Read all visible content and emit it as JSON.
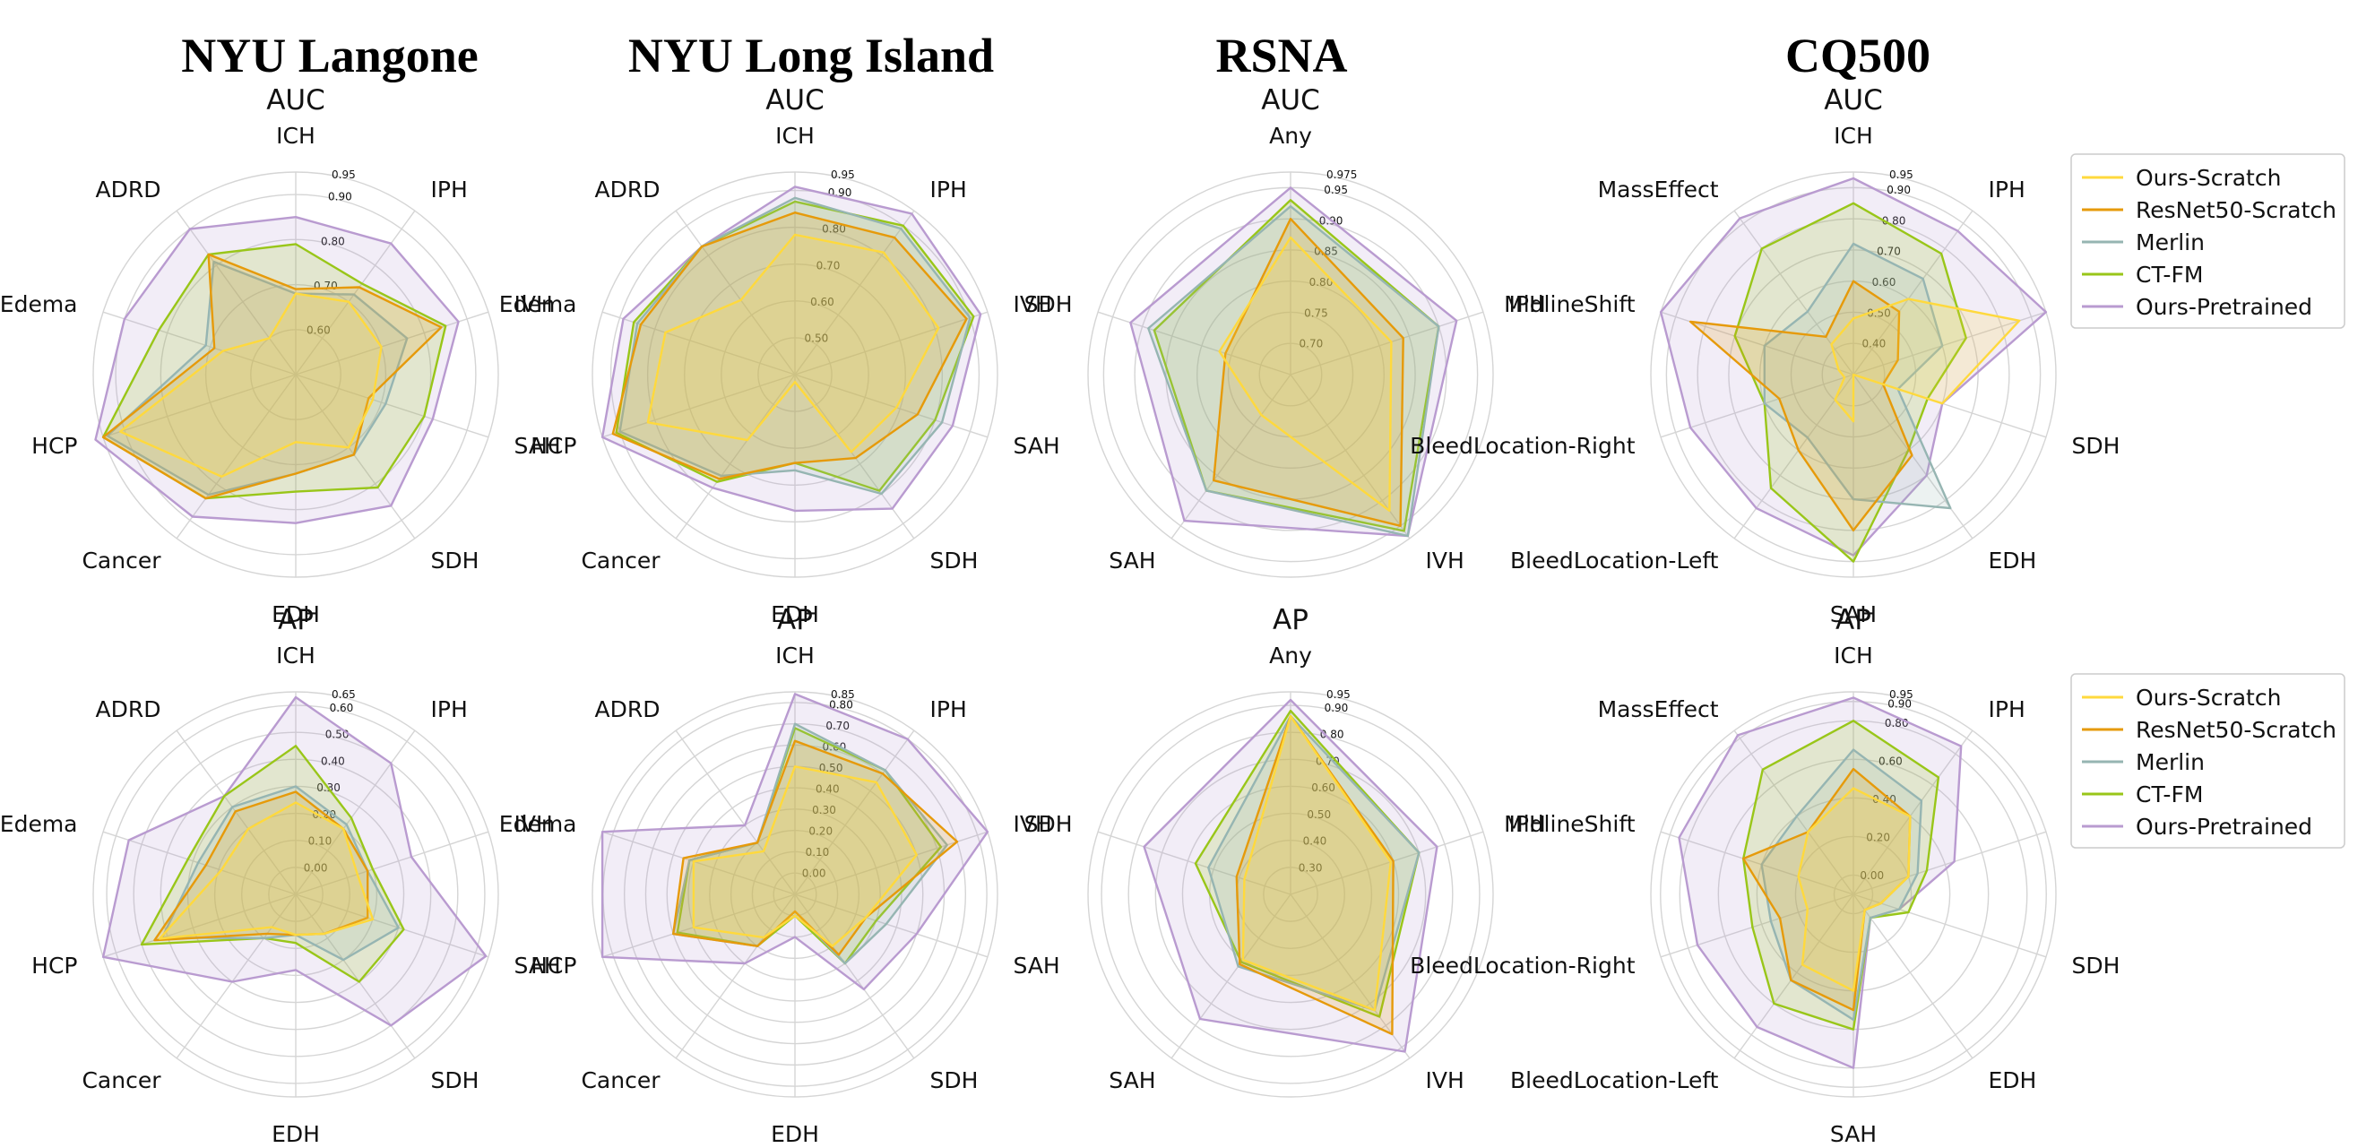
{
  "columns": [
    "NYU Langone",
    "NYU Long Island",
    "RSNA",
    "CQ500"
  ],
  "series_colors": {
    "Ours-Scratch": "#ffd93d",
    "ResNet50-Scratch": "#e69a0a",
    "Merlin": "#96b5b2",
    "CT-FM": "#99c619",
    "Ours-Pretrained": "#b99bd0"
  },
  "legends": [
    {
      "entries": [
        "Ours-Scratch",
        "ResNet50-Scratch",
        "Merlin",
        "CT-FM",
        "Ours-Pretrained"
      ]
    },
    {
      "entries": [
        "Ours-Scratch",
        "ResNet50-Scratch",
        "Merlin",
        "CT-FM",
        "Ours-Pretrained"
      ]
    }
  ],
  "chart_data": [
    {
      "type": "radar",
      "title": "AUC",
      "column": "NYU Langone",
      "axes": [
        "ICH",
        "IPH",
        "IVH",
        "SAH",
        "SDH",
        "EDH",
        "Cancer",
        "HCP",
        "Edema",
        "ADRD"
      ],
      "range": [
        0.5,
        0.95
      ],
      "ticks": [
        "0.60",
        "0.70",
        "0.80",
        "0.90",
        "0.95"
      ],
      "series": [
        {
          "name": "Ours-Scratch",
          "values": [
            0.68,
            0.7,
            0.7,
            0.68,
            0.7,
            0.65,
            0.78,
            0.91,
            0.67,
            0.6
          ]
        },
        {
          "name": "ResNet50-Scratch",
          "values": [
            0.69,
            0.74,
            0.84,
            0.67,
            0.72,
            0.72,
            0.84,
            0.95,
            0.69,
            0.83
          ]
        },
        {
          "name": "Merlin",
          "values": [
            0.68,
            0.72,
            0.76,
            0.71,
            0.72,
            0.72,
            0.83,
            0.94,
            0.71,
            0.81
          ]
        },
        {
          "name": "CT-FM",
          "values": [
            0.79,
            0.75,
            0.85,
            0.8,
            0.81,
            0.76,
            0.84,
            0.95,
            0.82,
            0.83
          ]
        },
        {
          "name": "Ours-Pretrained",
          "values": [
            0.85,
            0.86,
            0.88,
            0.82,
            0.86,
            0.83,
            0.89,
            0.98,
            0.9,
            0.9
          ]
        }
      ]
    },
    {
      "type": "radar",
      "title": "AUC",
      "column": "NYU Long Island",
      "axes": [
        "ICH",
        "IPH",
        "IVH",
        "SAH",
        "SDH",
        "EDH",
        "Cancer",
        "HCP",
        "Edema",
        "ADRD"
      ],
      "range": [
        0.4,
        0.95
      ],
      "ticks": [
        "0.50",
        "0.60",
        "0.70",
        "0.80",
        "0.90",
        "0.95"
      ],
      "series": [
        {
          "name": "Ours-Scratch",
          "values": [
            0.78,
            0.81,
            0.81,
            0.69,
            0.66,
            0.42,
            0.62,
            0.82,
            0.77,
            0.65
          ]
        },
        {
          "name": "ResNet50-Scratch",
          "values": [
            0.84,
            0.86,
            0.89,
            0.75,
            0.68,
            0.64,
            0.75,
            0.92,
            0.84,
            0.83
          ]
        },
        {
          "name": "Merlin",
          "values": [
            0.88,
            0.89,
            0.9,
            0.82,
            0.8,
            0.66,
            0.74,
            0.9,
            0.85,
            0.83
          ]
        },
        {
          "name": "CT-FM",
          "values": [
            0.87,
            0.9,
            0.91,
            0.8,
            0.79,
            0.64,
            0.76,
            0.91,
            0.86,
            0.83
          ]
        },
        {
          "name": "Ours-Pretrained",
          "values": [
            0.91,
            0.94,
            0.93,
            0.85,
            0.85,
            0.77,
            0.78,
            0.95,
            0.89,
            0.83
          ]
        }
      ]
    },
    {
      "type": "radar",
      "title": "AUC",
      "column": "RSNA",
      "axes": [
        "Any",
        "IPH",
        "IVH",
        "SAH",
        "SDH"
      ],
      "range": [
        0.65,
        0.975
      ],
      "ticks": [
        "0.70",
        "0.75",
        "0.80",
        "0.85",
        "0.90",
        "0.95",
        "0.975"
      ],
      "series": [
        {
          "name": "Ours-Scratch",
          "values": [
            0.87,
            0.82,
            0.92,
            0.73,
            0.77
          ]
        },
        {
          "name": "ResNet50-Scratch",
          "values": [
            0.9,
            0.84,
            0.95,
            0.86,
            0.76
          ]
        },
        {
          "name": "Merlin",
          "values": [
            0.92,
            0.9,
            0.97,
            0.88,
            0.89
          ]
        },
        {
          "name": "CT-FM",
          "values": [
            0.93,
            0.9,
            0.96,
            0.88,
            0.88
          ]
        },
        {
          "name": "Ours-Pretrained",
          "values": [
            0.95,
            0.93,
            0.97,
            0.94,
            0.92
          ]
        }
      ]
    },
    {
      "type": "radar",
      "title": "AUC",
      "column": "CQ500",
      "axes": [
        "ICH",
        "IPH",
        "IVH",
        "SDH",
        "EDH",
        "SAH",
        "BleedLocation-Left",
        "BleedLocation-Right",
        "MidlineShift",
        "MassEffect"
      ],
      "range": [
        0.3,
        0.95
      ],
      "ticks": [
        "0.40",
        "0.50",
        "0.60",
        "0.70",
        "0.80",
        "0.90",
        "0.95"
      ],
      "series": [
        {
          "name": "Ours-Scratch",
          "values": [
            0.48,
            0.6,
            0.86,
            0.6,
            0.3,
            0.45,
            0.4,
            0.33,
            0.35,
            0.42
          ]
        },
        {
          "name": "ResNet50-Scratch",
          "values": [
            0.6,
            0.55,
            0.45,
            0.4,
            0.62,
            0.8,
            0.6,
            0.55,
            0.85,
            0.45
          ]
        },
        {
          "name": "Merlin",
          "values": [
            0.72,
            0.68,
            0.6,
            0.45,
            0.83,
            0.7,
            0.55,
            0.6,
            0.6,
            0.55
          ]
        },
        {
          "name": "CT-FM",
          "values": [
            0.85,
            0.78,
            0.68,
            0.55,
            0.6,
            0.9,
            0.75,
            0.6,
            0.7,
            0.8
          ]
        },
        {
          "name": "Ours-Pretrained",
          "values": [
            0.93,
            0.87,
            0.95,
            0.6,
            0.7,
            0.88,
            0.83,
            0.85,
            0.95,
            0.92
          ]
        }
      ]
    },
    {
      "type": "radar",
      "title": "AP",
      "column": "NYU Langone",
      "axes": [
        "ICH",
        "IPH",
        "IVH",
        "SAH",
        "SDH",
        "EDH",
        "Cancer",
        "HCP",
        "Edema",
        "ADRD"
      ],
      "range": [
        -0.1,
        0.65
      ],
      "ticks": [
        "0.00",
        "0.10",
        "0.20",
        "0.30",
        "0.40",
        "0.50",
        "0.60",
        "0.65"
      ],
      "series": [
        {
          "name": "Ours-Scratch",
          "values": [
            0.24,
            0.2,
            0.14,
            0.2,
            0.08,
            0.05,
            0.05,
            0.43,
            0.19,
            0.2
          ]
        },
        {
          "name": "ResNet50-Scratch",
          "values": [
            0.28,
            0.2,
            0.18,
            0.18,
            0.08,
            0.05,
            0.08,
            0.45,
            0.25,
            0.28
          ]
        },
        {
          "name": "Merlin",
          "values": [
            0.3,
            0.22,
            0.18,
            0.3,
            0.2,
            0.05,
            0.1,
            0.42,
            0.28,
            0.3
          ]
        },
        {
          "name": "CT-FM",
          "values": [
            0.45,
            0.25,
            0.2,
            0.32,
            0.3,
            0.08,
            0.1,
            0.5,
            0.32,
            0.35
          ]
        },
        {
          "name": "Ours-Pretrained",
          "values": [
            0.63,
            0.5,
            0.35,
            0.64,
            0.5,
            0.18,
            0.3,
            0.65,
            0.55,
            0.35
          ]
        }
      ]
    },
    {
      "type": "radar",
      "title": "AP",
      "column": "NYU Long Island",
      "axes": [
        "ICH",
        "IPH",
        "IVH",
        "SAH",
        "SDH",
        "EDH",
        "Cancer",
        "HCP",
        "Edema",
        "ADRD"
      ],
      "range": [
        -0.1,
        0.85
      ],
      "ticks": [
        "0.00",
        "0.10",
        "0.20",
        "0.30",
        "0.40",
        "0.50",
        "0.60",
        "0.70",
        "0.80",
        "0.85"
      ],
      "series": [
        {
          "name": "Ours-Scratch",
          "values": [
            0.5,
            0.55,
            0.5,
            0.25,
            0.2,
            0.0,
            0.15,
            0.4,
            0.4,
            0.15
          ]
        },
        {
          "name": "ResNet50-Scratch",
          "values": [
            0.62,
            0.6,
            0.7,
            0.25,
            0.25,
            -0.02,
            0.2,
            0.5,
            0.45,
            0.2
          ]
        },
        {
          "name": "Merlin",
          "values": [
            0.7,
            0.62,
            0.65,
            0.35,
            0.3,
            -0.02,
            0.2,
            0.5,
            0.42,
            0.2
          ]
        },
        {
          "name": "CT-FM",
          "values": [
            0.68,
            0.62,
            0.62,
            0.3,
            0.3,
            0.0,
            0.2,
            0.48,
            0.42,
            0.2
          ]
        },
        {
          "name": "Ours-Pretrained",
          "values": [
            0.84,
            0.8,
            0.85,
            0.5,
            0.45,
            0.1,
            0.3,
            0.85,
            0.85,
            0.3
          ]
        }
      ]
    },
    {
      "type": "radar",
      "title": "AP",
      "column": "RSNA",
      "axes": [
        "Any",
        "IPH",
        "IVH",
        "SAH",
        "SDH"
      ],
      "range": [
        0.2,
        0.95
      ],
      "ticks": [
        "0.30",
        "0.40",
        "0.50",
        "0.60",
        "0.70",
        "0.80",
        "0.90",
        "0.95"
      ],
      "series": [
        {
          "name": "Ours-Scratch",
          "values": [
            0.86,
            0.59,
            0.73,
            0.5,
            0.38
          ]
        },
        {
          "name": "ResNet50-Scratch",
          "values": [
            0.86,
            0.6,
            0.84,
            0.52,
            0.41
          ]
        },
        {
          "name": "Merlin",
          "values": [
            0.86,
            0.7,
            0.73,
            0.53,
            0.52
          ]
        },
        {
          "name": "CT-FM",
          "values": [
            0.88,
            0.7,
            0.76,
            0.51,
            0.57
          ]
        },
        {
          "name": "Ours-Pretrained",
          "values": [
            0.92,
            0.77,
            0.92,
            0.77,
            0.77
          ]
        }
      ]
    },
    {
      "type": "radar",
      "title": "AP",
      "column": "CQ500",
      "axes": [
        "ICH",
        "IPH",
        "IVH",
        "SDH",
        "EDH",
        "SAH",
        "BleedLocation-Left",
        "BleedLocation-Right",
        "MidlineShift",
        "MassEffect"
      ],
      "range": [
        -0.1,
        0.95
      ],
      "ticks": [
        "0.00",
        "0.20",
        "0.40",
        "0.60",
        "0.80",
        "0.90",
        "0.95"
      ],
      "series": [
        {
          "name": "Ours-Scratch",
          "values": [
            0.45,
            0.4,
            0.2,
            0.05,
            0.0,
            0.4,
            0.35,
            0.15,
            0.2,
            0.3
          ]
        },
        {
          "name": "ResNet50-Scratch",
          "values": [
            0.55,
            0.4,
            0.2,
            0.05,
            0.0,
            0.5,
            0.45,
            0.3,
            0.5,
            0.3
          ]
        },
        {
          "name": "Merlin",
          "values": [
            0.65,
            0.5,
            0.25,
            0.15,
            0.05,
            0.55,
            0.45,
            0.35,
            0.4,
            0.4
          ]
        },
        {
          "name": "CT-FM",
          "values": [
            0.8,
            0.65,
            0.3,
            0.2,
            0.05,
            0.6,
            0.6,
            0.45,
            0.5,
            0.7
          ]
        },
        {
          "name": "Ours-Pretrained",
          "values": [
            0.92,
            0.85,
            0.45,
            0.15,
            0.05,
            0.8,
            0.75,
            0.75,
            0.85,
            0.92
          ]
        }
      ]
    }
  ]
}
